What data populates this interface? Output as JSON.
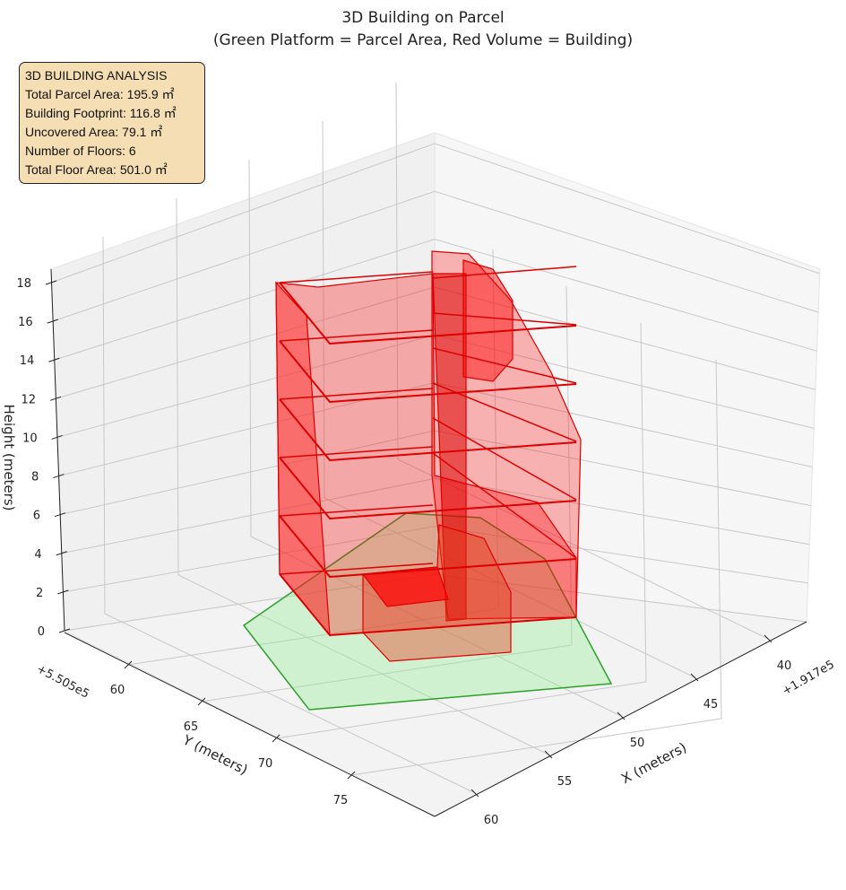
{
  "chart_data": {
    "type": "3d-polygons",
    "title": "3D Building on Parcel",
    "subtitle": "(Green Platform = Parcel Area, Red Volume = Building)",
    "xlabel": "X (meters)",
    "ylabel": "Y (meters)",
    "zlabel": "Height (meters)",
    "x_offset": "+1.917e5",
    "y_offset": "+5.505e5",
    "x_ticks": [
      "40",
      "45",
      "50",
      "55",
      "60"
    ],
    "y_ticks": [
      "60",
      "65",
      "70",
      "75"
    ],
    "z_ticks": [
      "0",
      "2",
      "4",
      "6",
      "8",
      "10",
      "12",
      "14",
      "16",
      "18"
    ],
    "zlim": [
      0,
      18
    ],
    "num_floors": 6,
    "floor_height": 3,
    "series": [
      {
        "name": "Parcel Area",
        "color": "#2ca02c",
        "fill": "#90ee90"
      },
      {
        "name": "Building",
        "color": "#dd0000",
        "fill": "#ff0000"
      }
    ]
  },
  "info": {
    "heading": "3D BUILDING ANALYSIS",
    "lines": [
      "Total Parcel Area: 195.9 ㎡",
      "Building Footprint: 116.8 ㎡",
      "Uncovered Area: 79.1 ㎡",
      "Number of Floors: 6",
      "Total Floor Area: 501.0 ㎡"
    ]
  }
}
